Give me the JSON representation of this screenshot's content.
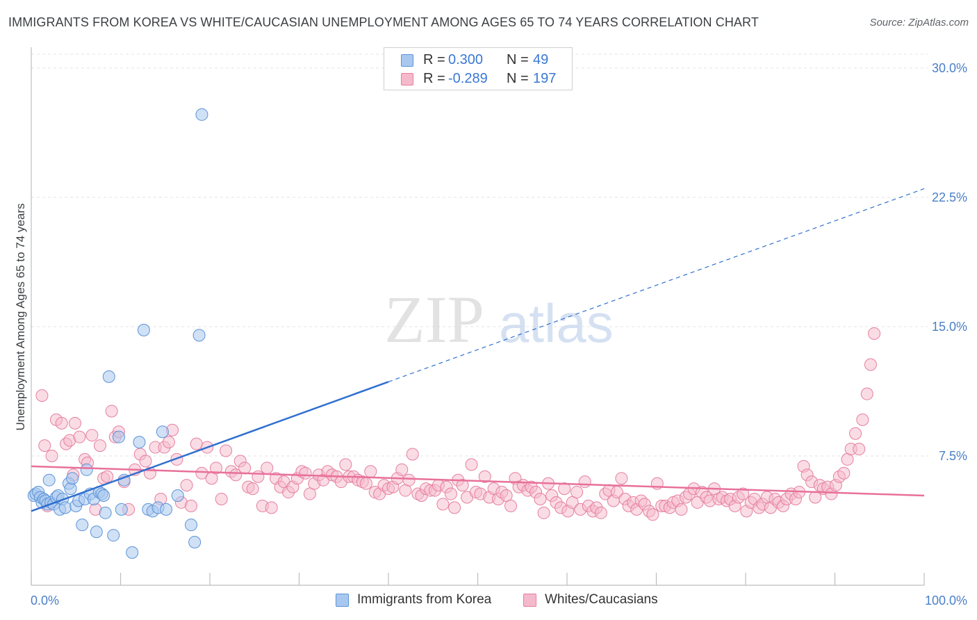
{
  "title": "IMMIGRANTS FROM KOREA VS WHITE/CAUCASIAN UNEMPLOYMENT AMONG AGES 65 TO 74 YEARS CORRELATION CHART",
  "source": "Source: ZipAtlas.com",
  "watermark": "ZIPatlas",
  "colors": {
    "blue_fill": "#a9c8ef",
    "blue_stroke": "#5b93d8",
    "blue_line": "#2f6fd0",
    "pink_fill": "#f5b9cc",
    "pink_stroke": "#e57fa1",
    "pink_line": "#e8709a",
    "grid": "#e3e3e3",
    "tick_text": "#4a7fc8"
  },
  "legend": {
    "series": [
      {
        "r_label": "R =",
        "r_value": "0.300",
        "n_label": "N =",
        "n_value": "49"
      },
      {
        "r_label": "R =",
        "r_value": "-0.289",
        "n_label": "N =",
        "n_value": "197"
      }
    ]
  },
  "chart_data": {
    "type": "scatter",
    "title": "IMMIGRANTS FROM KOREA VS WHITE/CAUCASIAN UNEMPLOYMENT AMONG AGES 65 TO 74 YEARS CORRELATION CHART",
    "xlabel": "",
    "ylabel": "Unemployment Among Ages 65 to 74 years",
    "xlim": [
      0,
      100
    ],
    "ylim": [
      0,
      30.8
    ],
    "x_tick_labels": [
      "0.0%",
      "100.0%"
    ],
    "y_ticks": [
      7.5,
      15.0,
      22.5,
      30.0
    ],
    "y_tick_labels": [
      "7.5%",
      "15.0%",
      "22.5%",
      "30.0%"
    ],
    "grid": true,
    "legend_position": "top-center",
    "series": [
      {
        "name": "Immigrants from Korea",
        "r": 0.3,
        "n": 49,
        "trend": {
          "x0": 0,
          "y0": 4.3,
          "x1": 40,
          "y1": 11.8,
          "x_dash_end": 100,
          "y_dash_end": 23.0
        },
        "points": [
          [
            0.3,
            5.2
          ],
          [
            0.5,
            5.3
          ],
          [
            0.8,
            5.4
          ],
          [
            1.0,
            5.1
          ],
          [
            1.2,
            4.8
          ],
          [
            1.4,
            5.0
          ],
          [
            1.6,
            4.9
          ],
          [
            1.8,
            4.7
          ],
          [
            2.0,
            6.1
          ],
          [
            2.2,
            4.8
          ],
          [
            2.5,
            4.7
          ],
          [
            2.8,
            5.1
          ],
          [
            3.0,
            5.2
          ],
          [
            3.2,
            4.4
          ],
          [
            3.5,
            5.0
          ],
          [
            3.8,
            4.5
          ],
          [
            4.2,
            5.9
          ],
          [
            4.4,
            5.6
          ],
          [
            4.6,
            6.2
          ],
          [
            5.0,
            4.6
          ],
          [
            5.3,
            4.9
          ],
          [
            5.7,
            3.5
          ],
          [
            6.0,
            5.0
          ],
          [
            6.2,
            6.7
          ],
          [
            6.6,
            5.3
          ],
          [
            7.0,
            5.0
          ],
          [
            7.3,
            3.1
          ],
          [
            7.6,
            5.4
          ],
          [
            7.9,
            5.3
          ],
          [
            8.1,
            5.2
          ],
          [
            8.3,
            4.2
          ],
          [
            8.7,
            12.1
          ],
          [
            9.2,
            2.9
          ],
          [
            9.8,
            8.6
          ],
          [
            10.1,
            4.4
          ],
          [
            10.4,
            6.1
          ],
          [
            11.3,
            1.9
          ],
          [
            12.1,
            8.3
          ],
          [
            12.6,
            14.8
          ],
          [
            13.1,
            4.4
          ],
          [
            13.6,
            4.3
          ],
          [
            14.2,
            4.5
          ],
          [
            14.7,
            8.9
          ],
          [
            15.1,
            4.4
          ],
          [
            16.4,
            5.2
          ],
          [
            17.9,
            3.5
          ],
          [
            18.3,
            2.5
          ],
          [
            18.8,
            14.5
          ],
          [
            19.1,
            27.3
          ]
        ]
      },
      {
        "name": "Whites/Caucasians",
        "r": -0.289,
        "n": 197,
        "trend": {
          "x0": 0,
          "y0": 6.9,
          "x1": 100,
          "y1": 5.2
        },
        "points": [
          [
            1.2,
            11.0
          ],
          [
            1.5,
            8.1
          ],
          [
            1.8,
            4.6
          ],
          [
            2.3,
            7.5
          ],
          [
            2.8,
            9.6
          ],
          [
            3.4,
            9.4
          ],
          [
            3.9,
            8.2
          ],
          [
            4.3,
            8.4
          ],
          [
            4.7,
            6.4
          ],
          [
            4.9,
            9.4
          ],
          [
            5.4,
            8.6
          ],
          [
            6.0,
            7.3
          ],
          [
            6.3,
            7.1
          ],
          [
            6.8,
            8.7
          ],
          [
            7.2,
            4.4
          ],
          [
            7.7,
            8.1
          ],
          [
            8.1,
            6.2
          ],
          [
            8.5,
            6.3
          ],
          [
            9.0,
            10.1
          ],
          [
            9.4,
            8.6
          ],
          [
            9.8,
            8.9
          ],
          [
            10.4,
            6.0
          ],
          [
            10.9,
            4.4
          ],
          [
            11.6,
            6.7
          ],
          [
            12.2,
            7.6
          ],
          [
            12.8,
            7.2
          ],
          [
            13.3,
            6.5
          ],
          [
            13.9,
            8.0
          ],
          [
            14.5,
            5.0
          ],
          [
            14.9,
            8.0
          ],
          [
            15.4,
            8.3
          ],
          [
            15.8,
            9.0
          ],
          [
            16.3,
            7.3
          ],
          [
            16.8,
            4.8
          ],
          [
            17.4,
            5.8
          ],
          [
            17.9,
            4.6
          ],
          [
            18.5,
            8.2
          ],
          [
            19.1,
            6.5
          ],
          [
            19.7,
            8.0
          ],
          [
            20.2,
            6.2
          ],
          [
            20.7,
            6.8
          ],
          [
            21.3,
            5.0
          ],
          [
            21.8,
            7.8
          ],
          [
            22.4,
            6.6
          ],
          [
            22.9,
            6.4
          ],
          [
            23.4,
            7.2
          ],
          [
            23.9,
            6.8
          ],
          [
            24.3,
            5.7
          ],
          [
            24.8,
            5.6
          ],
          [
            25.4,
            6.3
          ],
          [
            25.9,
            4.6
          ],
          [
            26.4,
            6.8
          ],
          [
            26.9,
            4.5
          ],
          [
            27.4,
            6.2
          ],
          [
            27.9,
            5.7
          ],
          [
            28.3,
            6.0
          ],
          [
            28.8,
            5.4
          ],
          [
            29.3,
            5.7
          ],
          [
            29.8,
            6.2
          ],
          [
            30.3,
            6.6
          ],
          [
            30.7,
            6.5
          ],
          [
            31.2,
            5.3
          ],
          [
            31.7,
            5.9
          ],
          [
            32.2,
            6.4
          ],
          [
            32.7,
            6.1
          ],
          [
            33.2,
            6.6
          ],
          [
            33.7,
            6.4
          ],
          [
            34.2,
            6.3
          ],
          [
            34.7,
            6.0
          ],
          [
            35.2,
            7.0
          ],
          [
            35.6,
            6.3
          ],
          [
            36.1,
            6.3
          ],
          [
            36.6,
            6.1
          ],
          [
            37.1,
            6.0
          ],
          [
            37.5,
            5.9
          ],
          [
            38.0,
            6.6
          ],
          [
            38.5,
            5.4
          ],
          [
            39.0,
            5.3
          ],
          [
            39.5,
            5.8
          ],
          [
            40.0,
            5.6
          ],
          [
            40.5,
            5.7
          ],
          [
            41.0,
            6.2
          ],
          [
            41.5,
            6.7
          ],
          [
            41.9,
            5.5
          ],
          [
            42.3,
            6.1
          ],
          [
            42.7,
            7.6
          ],
          [
            43.3,
            5.3
          ],
          [
            43.7,
            5.2
          ],
          [
            44.2,
            5.6
          ],
          [
            44.7,
            5.5
          ],
          [
            45.2,
            5.5
          ],
          [
            45.6,
            5.8
          ],
          [
            46.1,
            4.7
          ],
          [
            46.5,
            5.7
          ],
          [
            47.0,
            5.3
          ],
          [
            47.4,
            4.5
          ],
          [
            47.8,
            6.1
          ],
          [
            48.3,
            5.8
          ],
          [
            48.8,
            5.1
          ],
          [
            49.3,
            7.0
          ],
          [
            49.8,
            5.4
          ],
          [
            50.3,
            5.3
          ],
          [
            50.8,
            6.3
          ],
          [
            51.3,
            5.1
          ],
          [
            51.8,
            5.6
          ],
          [
            52.3,
            5.0
          ],
          [
            52.7,
            5.4
          ],
          [
            53.2,
            5.2
          ],
          [
            53.7,
            4.6
          ],
          [
            54.2,
            6.2
          ],
          [
            54.6,
            5.7
          ],
          [
            55.1,
            5.8
          ],
          [
            55.6,
            5.5
          ],
          [
            56.0,
            5.7
          ],
          [
            56.5,
            5.4
          ],
          [
            57.0,
            5.0
          ],
          [
            57.4,
            4.2
          ],
          [
            57.9,
            5.9
          ],
          [
            58.3,
            5.2
          ],
          [
            58.8,
            4.8
          ],
          [
            59.3,
            4.5
          ],
          [
            59.7,
            5.6
          ],
          [
            60.1,
            4.3
          ],
          [
            60.6,
            4.8
          ],
          [
            61.1,
            5.4
          ],
          [
            61.5,
            4.4
          ],
          [
            62.0,
            6.0
          ],
          [
            62.4,
            4.6
          ],
          [
            62.9,
            4.3
          ],
          [
            63.3,
            4.5
          ],
          [
            63.8,
            4.2
          ],
          [
            64.3,
            5.3
          ],
          [
            64.7,
            5.5
          ],
          [
            65.2,
            4.9
          ],
          [
            65.6,
            5.4
          ],
          [
            66.1,
            6.2
          ],
          [
            66.5,
            5.0
          ],
          [
            66.9,
            4.6
          ],
          [
            67.4,
            4.8
          ],
          [
            67.8,
            4.4
          ],
          [
            68.3,
            4.9
          ],
          [
            68.7,
            4.7
          ],
          [
            69.2,
            4.3
          ],
          [
            69.6,
            4.1
          ],
          [
            70.1,
            5.9
          ],
          [
            70.6,
            4.6
          ],
          [
            71.0,
            4.6
          ],
          [
            71.5,
            4.5
          ],
          [
            71.9,
            4.8
          ],
          [
            72.4,
            4.9
          ],
          [
            72.8,
            4.4
          ],
          [
            73.3,
            5.1
          ],
          [
            73.7,
            5.3
          ],
          [
            74.2,
            5.6
          ],
          [
            74.6,
            4.8
          ],
          [
            75.1,
            5.4
          ],
          [
            75.6,
            5.1
          ],
          [
            76.0,
            4.9
          ],
          [
            76.5,
            5.6
          ],
          [
            77.0,
            5.0
          ],
          [
            77.4,
            5.1
          ],
          [
            77.9,
            4.9
          ],
          [
            78.3,
            5.0
          ],
          [
            78.8,
            4.6
          ],
          [
            79.2,
            5.1
          ],
          [
            79.7,
            5.3
          ],
          [
            80.1,
            4.3
          ],
          [
            80.6,
            4.8
          ],
          [
            81.0,
            5.0
          ],
          [
            81.5,
            4.5
          ],
          [
            81.9,
            4.7
          ],
          [
            82.4,
            5.1
          ],
          [
            82.8,
            4.5
          ],
          [
            83.3,
            5.0
          ],
          [
            83.7,
            4.8
          ],
          [
            84.2,
            4.6
          ],
          [
            84.6,
            5.0
          ],
          [
            85.1,
            5.3
          ],
          [
            85.6,
            5.0
          ],
          [
            86.0,
            5.4
          ],
          [
            86.5,
            6.9
          ],
          [
            86.9,
            6.4
          ],
          [
            87.4,
            6.0
          ],
          [
            87.8,
            5.1
          ],
          [
            88.3,
            5.8
          ],
          [
            88.7,
            5.6
          ],
          [
            89.2,
            5.7
          ],
          [
            89.6,
            5.3
          ],
          [
            90.1,
            5.8
          ],
          [
            90.5,
            6.3
          ],
          [
            91.0,
            6.5
          ],
          [
            91.4,
            7.3
          ],
          [
            91.8,
            7.9
          ],
          [
            92.3,
            8.8
          ],
          [
            92.7,
            7.9
          ],
          [
            93.1,
            9.6
          ],
          [
            93.6,
            11.1
          ],
          [
            94.0,
            12.8
          ],
          [
            94.4,
            14.6
          ]
        ]
      }
    ]
  },
  "bottom_legend": [
    {
      "label": "Immigrants from Korea"
    },
    {
      "label": "Whites/Caucasians"
    }
  ]
}
